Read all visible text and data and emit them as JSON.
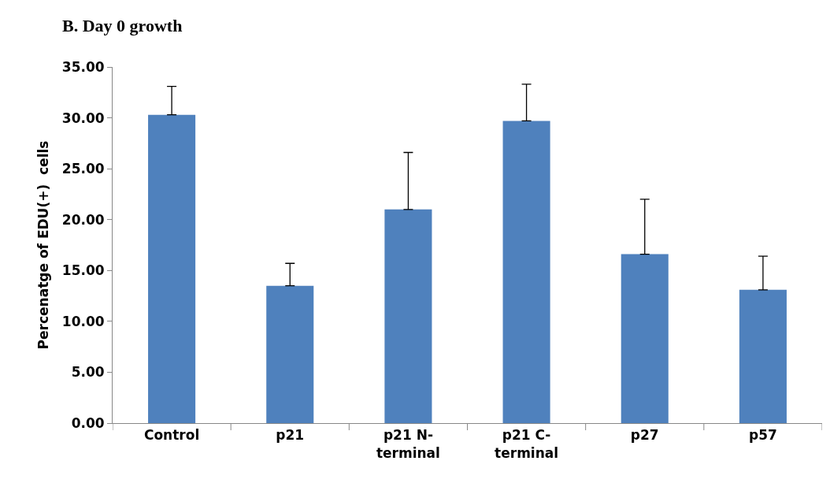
{
  "chart_data": {
    "type": "bar",
    "title": "B. Day 0 growth",
    "ylabel": "Percenatge of EDU(+)  cells",
    "categories": [
      "Control",
      "p21",
      "p21 N-\nterminal",
      "p21 C-\nterminal",
      "p27",
      "p57"
    ],
    "values": [
      30.3,
      13.5,
      21.0,
      29.7,
      16.6,
      13.1
    ],
    "errors": [
      [
        30.3,
        33.1
      ],
      [
        13.5,
        15.7
      ],
      [
        21.0,
        26.6
      ],
      [
        29.7,
        33.3
      ],
      [
        16.6,
        22.0
      ],
      [
        13.1,
        16.4
      ]
    ],
    "color": "#4f81bd",
    "ylim": [
      0,
      35
    ],
    "yticks": [
      {
        "value": 0,
        "label": "0.00"
      },
      {
        "value": 5,
        "label": "5.00"
      },
      {
        "value": 10,
        "label": "10.00"
      },
      {
        "value": 15,
        "label": "15.00"
      },
      {
        "value": 20,
        "label": "20.00"
      },
      {
        "value": 25,
        "label": "25.00"
      },
      {
        "value": 30,
        "label": "30.00"
      },
      {
        "value": 35,
        "label": "35.00"
      }
    ]
  }
}
